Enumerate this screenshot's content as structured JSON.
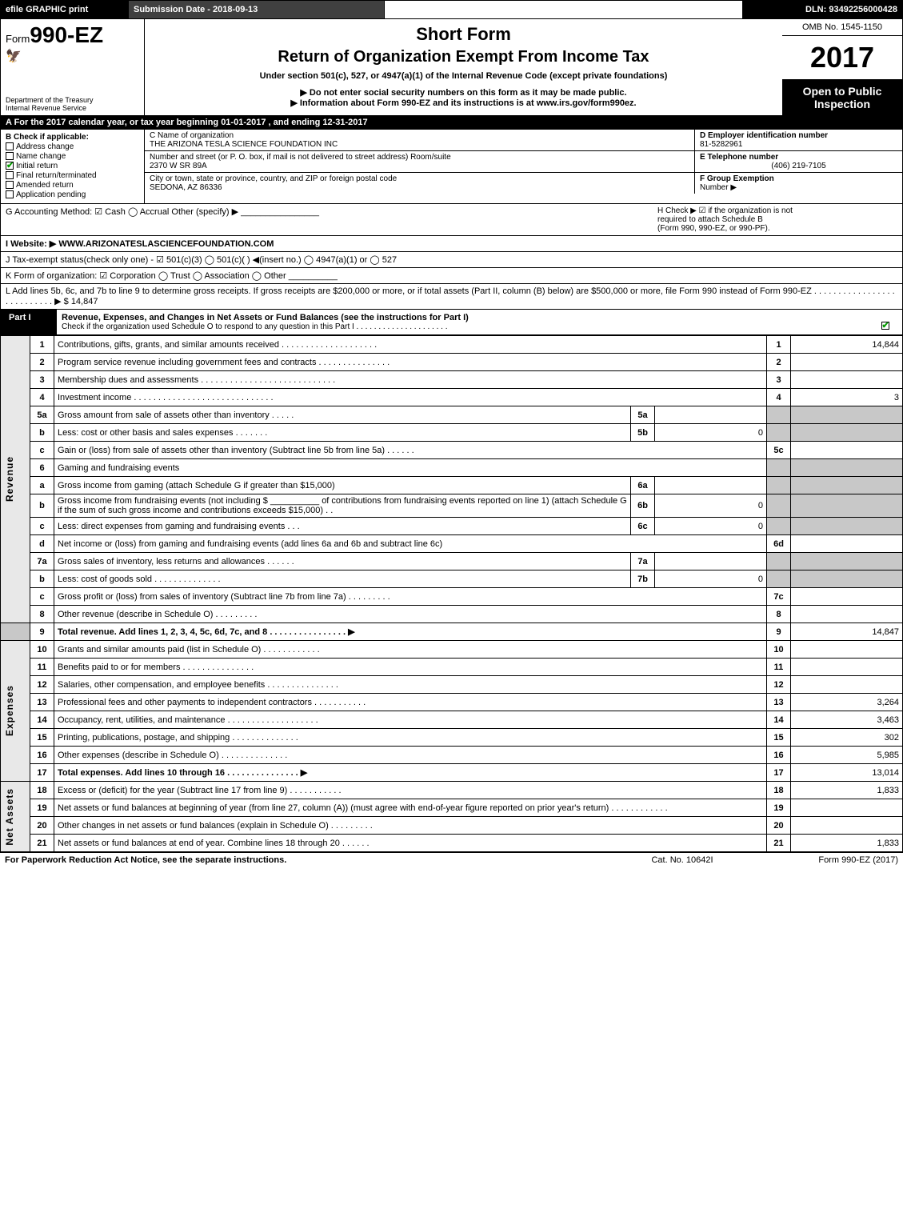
{
  "topbar": {
    "efile": "efile GRAPHIC print",
    "subdate": "Submission Date - 2018-09-13",
    "dln": "DLN: 93492256000428"
  },
  "header": {
    "form_prefix": "Form",
    "form_no": "990-EZ",
    "dept1": "Department of the Treasury",
    "dept2": "Internal Revenue Service",
    "short": "Short Form",
    "return": "Return of Organization Exempt From Income Tax",
    "under": "Under section 501(c), 527, or 4947(a)(1) of the Internal Revenue Code (except private foundations)",
    "noenter": "▶ Do not enter social security numbers on this form as it may be made public.",
    "info": "▶ Information about Form 990-EZ and its instructions is at www.irs.gov/form990ez.",
    "omb": "OMB No. 1545-1150",
    "year": "2017",
    "open1": "Open to Public",
    "open2": "Inspection"
  },
  "lineA": "A  For the 2017 calendar year, or tax year beginning 01-01-2017          , and ending 12-31-2017",
  "boxB": {
    "hdr": "B  Check if applicable:",
    "o1": "Address change",
    "o2": "Name change",
    "o3": "Initial return",
    "o4": "Final return/terminated",
    "o5": "Amended return",
    "o6": "Application pending"
  },
  "boxC": {
    "r1lbl": "C Name of organization",
    "r1val": "THE ARIZONA TESLA SCIENCE FOUNDATION INC",
    "r2lbl": "Number and street (or P. O. box, if mail is not delivered to street address)    Room/suite",
    "r2val": "2370 W SR 89A",
    "r3lbl": "City or town, state or province, country, and ZIP or foreign postal code",
    "r3val": "SEDONA, AZ  86336"
  },
  "boxD": {
    "hdr": "D Employer identification number",
    "ein": "81-5282961",
    "telhdr": "E Telephone number",
    "tel": "(406) 219-7105",
    "grphdr": "F Group Exemption",
    "grp": "Number   ▶"
  },
  "rowG": {
    "left": "G Accounting Method:   ☑ Cash   ◯ Accrual   Other (specify) ▶ ________________",
    "right_h": "H   Check ▶  ☑  if the organization is not",
    "right_h2": "required to attach Schedule B",
    "right_h3": "(Form 990, 990-EZ, or 990-PF)."
  },
  "rowI": "I Website: ▶ WWW.ARIZONATESLASCIENCEFOUNDATION.COM",
  "rowJ": "J Tax-exempt status(check only one) -  ☑ 501(c)(3)  ◯ 501(c)(  ) ◀(insert no.)  ◯ 4947(a)(1) or  ◯ 527",
  "rowK": "K Form of organization:   ☑ Corporation   ◯ Trust   ◯ Association   ◯ Other  __________",
  "rowL": "L Add lines 5b, 6c, and 7b to line 9 to determine gross receipts. If gross receipts are $200,000 or more, or if total assets (Part II, column (B) below) are $500,000 or more, file Form 990 instead of Form 990-EZ  .  .  .  .  .  .  .  .  .  .  .  .  .  .  .  .  .  .  .  .  .  .  .  .  .  .  .  ▶ $ 14,847",
  "partI": {
    "lbl": "Part I",
    "title": "Revenue, Expenses, and Changes in Net Assets or Fund Balances (see the instructions for Part I)",
    "sub": "Check if the organization used Schedule O to respond to any question in this Part I .  .  .  .  .  .  .  .  .  .  .  .  .  .  .  .  .  .  .  .  ."
  },
  "sections": {
    "revenue": "Revenue",
    "expenses": "Expenses",
    "netassets": "Net Assets"
  },
  "lines": {
    "l1": {
      "n": "1",
      "d": "Contributions, gifts, grants, and similar amounts received  .  .  .  .  .  .  .  .  .  .  .  .  .  .  .  .  .  .  .  .",
      "rn": "1",
      "rv": "14,844"
    },
    "l2": {
      "n": "2",
      "d": "Program service revenue including government fees and contracts  .  .  .  .  .  .  .  .  .  .  .  .  .  .  .",
      "rn": "2",
      "rv": ""
    },
    "l3": {
      "n": "3",
      "d": "Membership dues and assessments  .  .  .  .  .  .  .  .  .  .  .  .  .  .  .  .  .  .  .  .  .  .  .  .  .  .  .  .",
      "rn": "3",
      "rv": ""
    },
    "l4": {
      "n": "4",
      "d": "Investment income  .  .  .  .  .  .  .  .  .  .  .  .  .  .  .  .  .  .  .  .  .  .  .  .  .  .  .  .  .",
      "rn": "4",
      "rv": "3"
    },
    "l5a": {
      "n": "5a",
      "d": "Gross amount from sale of assets other than inventory  .  .  .  .  .",
      "sn": "5a",
      "sv": ""
    },
    "l5b": {
      "n": "b",
      "d": "Less: cost or other basis and sales expenses  .  .  .  .  .  .  .",
      "sn": "5b",
      "sv": "0"
    },
    "l5c": {
      "n": "c",
      "d": "Gain or (loss) from sale of assets other than inventory (Subtract line 5b from line 5a) .  .  .  .  .  .",
      "rn": "5c",
      "rv": ""
    },
    "l6": {
      "n": "6",
      "d": "Gaming and fundraising events"
    },
    "l6a": {
      "n": "a",
      "d": "Gross income from gaming (attach Schedule G if greater than $15,000)",
      "sn": "6a",
      "sv": ""
    },
    "l6b": {
      "n": "b",
      "d": "Gross income from fundraising events (not including $ __________ of contributions from fundraising events reported on line 1) (attach Schedule G if the sum of such gross income and contributions exceeds $15,000)    .  .",
      "sn": "6b",
      "sv": "0"
    },
    "l6c": {
      "n": "c",
      "d": "Less: direct expenses from gaming and fundraising events          .  .  .",
      "sn": "6c",
      "sv": "0"
    },
    "l6d": {
      "n": "d",
      "d": "Net income or (loss) from gaming and fundraising events (add lines 6a and 6b and subtract line 6c)",
      "rn": "6d",
      "rv": ""
    },
    "l7a": {
      "n": "7a",
      "d": "Gross sales of inventory, less returns and allowances  .  .  .  .  .  .",
      "sn": "7a",
      "sv": ""
    },
    "l7b": {
      "n": "b",
      "d": "Less: cost of goods sold        .  .  .  .  .  .  .  .  .  .  .  .  .  .",
      "sn": "7b",
      "sv": "0"
    },
    "l7c": {
      "n": "c",
      "d": "Gross profit or (loss) from sales of inventory (Subtract line 7b from line 7a) .  .  .  .  .  .  .  .  .",
      "rn": "7c",
      "rv": ""
    },
    "l8": {
      "n": "8",
      "d": "Other revenue (describe in Schedule O)              .  .  .  .  .  .  .  .  .",
      "rn": "8",
      "rv": ""
    },
    "l9": {
      "n": "9",
      "d": "Total revenue. Add lines 1, 2, 3, 4, 5c, 6d, 7c, and 8  .  .  .  .  .  .  .  .  .  .  .  .  .  .  .  . ▶",
      "rn": "9",
      "rv": "14,847"
    },
    "l10": {
      "n": "10",
      "d": "Grants and similar amounts paid (list in Schedule O)           .  .  .  .  .  .  .  .  .  .  .  .",
      "rn": "10",
      "rv": ""
    },
    "l11": {
      "n": "11",
      "d": "Benefits paid to or for members              .  .  .  .  .  .  .  .  .  .  .  .  .  .  .",
      "rn": "11",
      "rv": ""
    },
    "l12": {
      "n": "12",
      "d": "Salaries, other compensation, and employee benefits .  .  .  .  .  .  .  .  .  .  .  .  .  .  .",
      "rn": "12",
      "rv": ""
    },
    "l13": {
      "n": "13",
      "d": "Professional fees and other payments to independent contractors  .  .  .  .  .  .  .  .  .  .  .",
      "rn": "13",
      "rv": "3,264"
    },
    "l14": {
      "n": "14",
      "d": "Occupancy, rent, utilities, and maintenance .  .  .  .  .  .  .  .  .  .  .  .  .  .  .  .  .  .  .",
      "rn": "14",
      "rv": "3,463"
    },
    "l15": {
      "n": "15",
      "d": "Printing, publications, postage, and shipping          .  .  .  .  .  .  .  .  .  .  .  .  .  .",
      "rn": "15",
      "rv": "302"
    },
    "l16": {
      "n": "16",
      "d": "Other expenses (describe in Schedule O)             .  .  .  .  .  .  .  .  .  .  .  .  .  .",
      "rn": "16",
      "rv": "5,985"
    },
    "l17": {
      "n": "17",
      "d": "Total expenses. Add lines 10 through 16         .  .  .  .  .  .  .  .  .  .  .  .  .  .  . ▶",
      "rn": "17",
      "rv": "13,014"
    },
    "l18": {
      "n": "18",
      "d": "Excess or (deficit) for the year (Subtract line 17 from line 9)        .  .  .  .  .  .  .  .  .  .  .",
      "rn": "18",
      "rv": "1,833"
    },
    "l19": {
      "n": "19",
      "d": "Net assets or fund balances at beginning of year (from line 27, column (A)) (must agree with end-of-year figure reported on prior year's return)          .  .  .  .  .  .  .  .  .  .  .  .",
      "rn": "19",
      "rv": ""
    },
    "l20": {
      "n": "20",
      "d": "Other changes in net assets or fund balances (explain in Schedule O)     .  .  .  .  .  .  .  .  .",
      "rn": "20",
      "rv": ""
    },
    "l21": {
      "n": "21",
      "d": "Net assets or fund balances at end of year. Combine lines 18 through 20         .  .  .  .  .  .",
      "rn": "21",
      "rv": "1,833"
    }
  },
  "footer": {
    "l": "For Paperwork Reduction Act Notice, see the separate instructions.",
    "m": "Cat. No. 10642I",
    "r": "Form 990-EZ (2017)"
  }
}
